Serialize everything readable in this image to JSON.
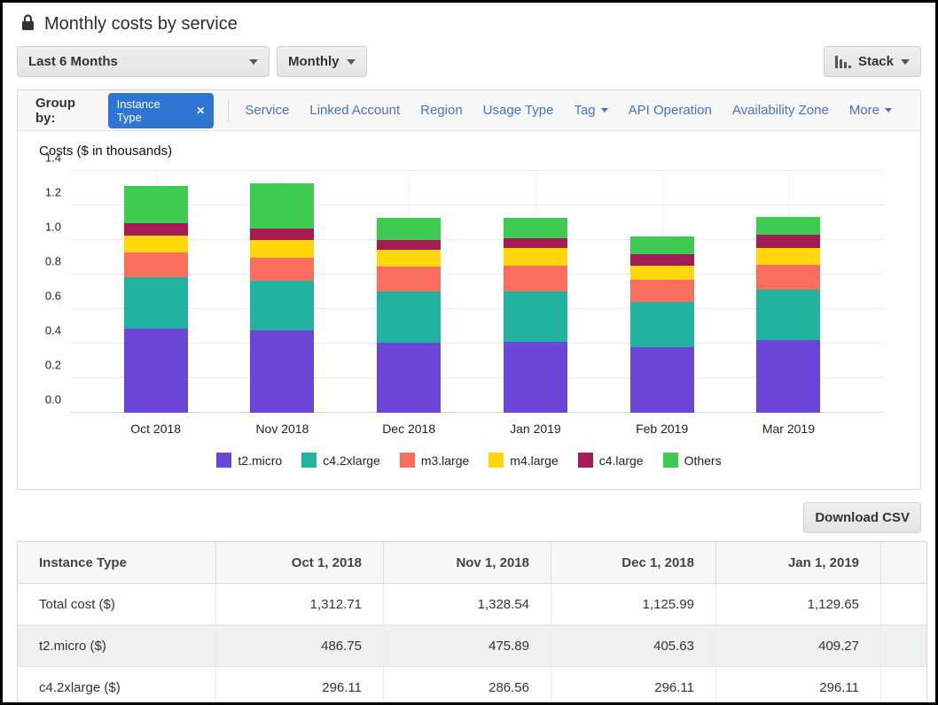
{
  "header": {
    "title": "Monthly costs by service"
  },
  "toolbar": {
    "range_label": "Last 6 Months",
    "granularity_label": "Monthly",
    "chart_type_label": "Stack"
  },
  "group_by": {
    "label": "Group by:",
    "active_filter": "Instance Type",
    "links": [
      {
        "label": "Service"
      },
      {
        "label": "Linked Account"
      },
      {
        "label": "Region"
      },
      {
        "label": "Usage Type"
      },
      {
        "label": "Tag",
        "caret": true
      },
      {
        "label": "API Operation"
      },
      {
        "label": "Availability Zone"
      },
      {
        "label": "More",
        "caret": true,
        "push_right": true
      }
    ]
  },
  "chart_data": {
    "type": "bar",
    "stacked": true,
    "title": "Costs ($ in thousands)",
    "categories": [
      "Oct 2018",
      "Nov 2018",
      "Dec 2018",
      "Jan 2019",
      "Feb 2019",
      "Mar 2019"
    ],
    "series": [
      {
        "name": "t2.micro",
        "color": "#6a45d6",
        "values": [
          0.487,
          0.476,
          0.406,
          0.409,
          0.38,
          0.42
        ]
      },
      {
        "name": "c4.2xlarge",
        "color": "#22b2a0",
        "values": [
          0.296,
          0.287,
          0.296,
          0.296,
          0.26,
          0.295
        ]
      },
      {
        "name": "m3.large",
        "color": "#fb6e5e",
        "values": [
          0.147,
          0.137,
          0.143,
          0.145,
          0.13,
          0.14
        ]
      },
      {
        "name": "m4.large",
        "color": "#ffd60a",
        "values": [
          0.095,
          0.1,
          0.1,
          0.105,
          0.08,
          0.1
        ]
      },
      {
        "name": "c4.large",
        "color": "#a31d54",
        "values": [
          0.075,
          0.065,
          0.055,
          0.055,
          0.07,
          0.075
        ]
      },
      {
        "name": "Others",
        "color": "#3ecb51",
        "values": [
          0.213,
          0.264,
          0.126,
          0.12,
          0.1,
          0.105
        ]
      }
    ],
    "ylim": [
      0,
      1.4
    ],
    "yticks": [
      0.0,
      0.2,
      0.4,
      0.6,
      0.8,
      1.0,
      1.2,
      1.4
    ],
    "grid": true,
    "legend_position": "bottom"
  },
  "download_button": {
    "label": "Download CSV"
  },
  "table": {
    "columns": [
      "Instance Type",
      "Oct 1, 2018",
      "Nov 1, 2018",
      "Dec 1, 2018",
      "Jan 1, 2019",
      ""
    ],
    "rows": [
      {
        "cells": [
          "Total cost ($)",
          "1,312.71",
          "1,328.54",
          "1,125.99",
          "1,129.65"
        ],
        "shaded": false
      },
      {
        "cells": [
          "t2.micro ($)",
          "486.75",
          "475.89",
          "405.63",
          "409.27"
        ],
        "shaded": true
      },
      {
        "cells": [
          "c4.2xlarge ($)",
          "296.11",
          "286.56",
          "296.11",
          "296.11"
        ],
        "shaded": false
      }
    ]
  },
  "colors": {
    "link_blue": "#4273d9",
    "chip_blue": "#2e76d3",
    "header_bg": "#f7f7f7",
    "shaded_row": "#eef0f0"
  }
}
